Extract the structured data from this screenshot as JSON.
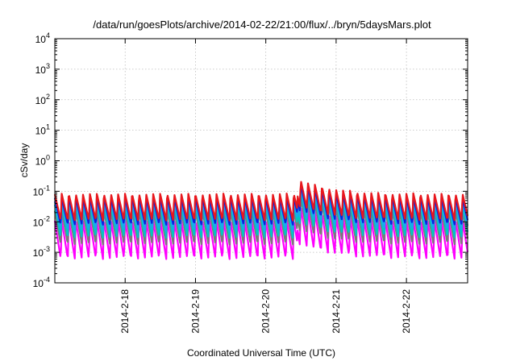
{
  "chart_data": {
    "type": "line",
    "title": "/data/run/goesPlots/archive/2014-02-22/21:00/flux/../bryn/5daysMars.plot",
    "xlabel": "Coordinated Universal Time (UTC)",
    "ylabel": "cSv/day",
    "yscale": "log",
    "ylim": [
      0.0001,
      10000
    ],
    "xlim": [
      17.0,
      22.87
    ],
    "grid": true,
    "y_ticks": [
      {
        "base": "10",
        "exp": "-4"
      },
      {
        "base": "10",
        "exp": "-3"
      },
      {
        "base": "10",
        "exp": "-2"
      },
      {
        "base": "10",
        "exp": "-1"
      },
      {
        "base": "10",
        "exp": "0"
      },
      {
        "base": "10",
        "exp": "1"
      },
      {
        "base": "10",
        "exp": "2"
      },
      {
        "base": "10",
        "exp": "3"
      },
      {
        "base": "10",
        "exp": "4"
      }
    ],
    "x_ticks": [
      {
        "label": "2014-2-18",
        "day": 18
      },
      {
        "label": "2014-2-19",
        "day": 19
      },
      {
        "label": "2014-2-20",
        "day": 20
      },
      {
        "label": "2014-2-21",
        "day": 21
      },
      {
        "label": "2014-2-22",
        "day": 22
      }
    ],
    "oscillation_period_days": 0.1,
    "event": {
      "start_day": 20.45,
      "peak_factor": 3.0
    },
    "series": [
      {
        "color": "#e8171d",
        "max": 0.085,
        "min": 0.011
      },
      {
        "color": "#0c1ee0",
        "max": 0.065,
        "min": 0.008
      },
      {
        "color": "#18a8f0",
        "max": 0.05,
        "min": 0.005
      },
      {
        "color": "#00c8c0",
        "max": 0.04,
        "min": 0.003
      },
      {
        "color": "#7a7a7a",
        "max": 0.025,
        "min": 0.0018
      },
      {
        "color": "#ff00ff",
        "max": 0.012,
        "min": 0.0006
      }
    ]
  }
}
